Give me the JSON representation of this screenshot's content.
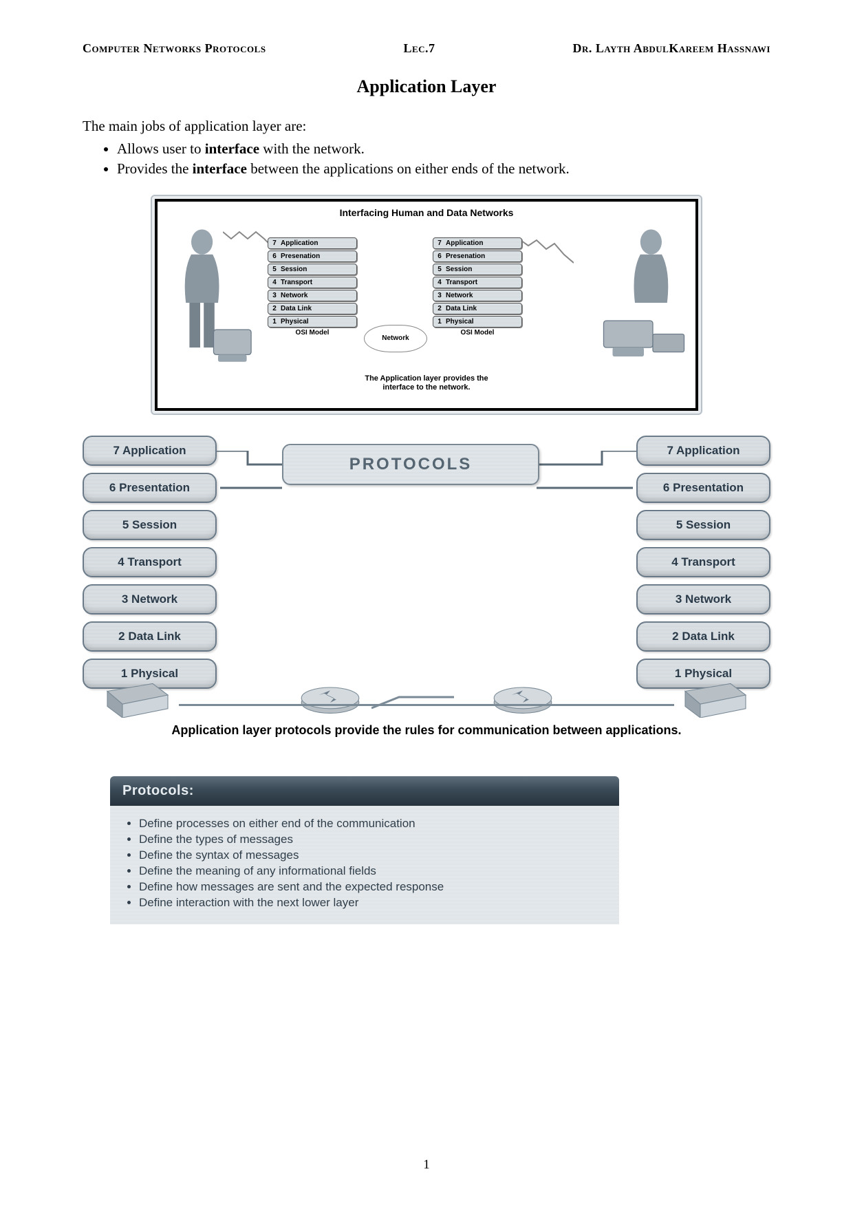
{
  "header": {
    "left": "Computer Networks Protocols",
    "center": "Lec.7",
    "right": "Dr. Layth AbdulKareem Hassnawi"
  },
  "title": "Application Layer",
  "intro_text": "The main jobs of application layer are:",
  "intro_bullets": [
    {
      "pre": "Allows user to ",
      "bold": "interface",
      "post": " with the network."
    },
    {
      "pre": "Provides the ",
      "bold": "interface",
      "post": " between the applications on either ends of the network."
    }
  ],
  "fig1": {
    "title": "Interfacing Human and Data Networks",
    "model_label": "OSI Model",
    "cloud_label": "Network",
    "layers": [
      {
        "n": "7",
        "name": "Application"
      },
      {
        "n": "6",
        "name": "Presenation"
      },
      {
        "n": "5",
        "name": "Session"
      },
      {
        "n": "4",
        "name": "Transport"
      },
      {
        "n": "3",
        "name": "Network"
      },
      {
        "n": "2",
        "name": "Data Link"
      },
      {
        "n": "1",
        "name": "Physical"
      }
    ],
    "caption_line1": "The Application layer provides the",
    "caption_line2": "interface to the network."
  },
  "fig2": {
    "protocols_label": "PROTOCOLS",
    "layers": [
      "7 Application",
      "6 Presentation",
      "5 Session",
      "4 Transport",
      "3 Network",
      "2 Data Link",
      "1 Physical"
    ],
    "caption": "Application layer protocols provide the rules for communication between applications."
  },
  "protocols_panel": {
    "title": "Protocols:",
    "items": [
      "Define processes on either end of the communication",
      "Define the types of messages",
      "Define the syntax of messages",
      "Define the meaning of any informational fields",
      "Define how messages are sent and the expected response",
      "Define interaction with the next lower layer"
    ]
  },
  "page_number": "1",
  "colors": {
    "box_border": "#6a7a88",
    "box_fill_light": "#e6eaed",
    "box_fill_dark": "#c8d0d6",
    "panel_header_top": "#5e6e7a",
    "panel_header_bottom": "#26333d",
    "panel_body": "#eceff1",
    "text_dark": "#2a3a48"
  }
}
